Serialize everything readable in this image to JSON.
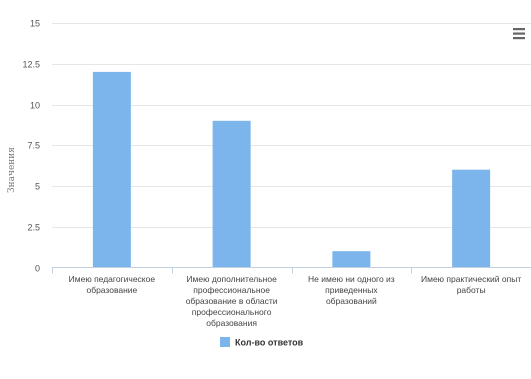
{
  "chart_data": {
    "type": "bar",
    "categories": [
      [
        "Имею педагогическое",
        "образование"
      ],
      [
        "Имею дополнительное",
        "профессиональное",
        "образование в области",
        "профессионального",
        "образования"
      ],
      [
        "Не имею ни одного из",
        "приведенных",
        "образований"
      ],
      [
        "Имею практический опыт",
        "работы"
      ]
    ],
    "series": [
      {
        "name": "Кол-во ответов",
        "values": [
          12,
          9,
          1,
          6
        ]
      }
    ],
    "ylabel": "Значения",
    "ylim": [
      0,
      15
    ],
    "yticks": [
      "0",
      "2.5",
      "5",
      "7.5",
      "10",
      "12.5",
      "15"
    ],
    "bar_color": "#7cb5ec",
    "grid": true,
    "legend_position": "bottom-center"
  },
  "menu_icon": "hamburger-menu-icon"
}
